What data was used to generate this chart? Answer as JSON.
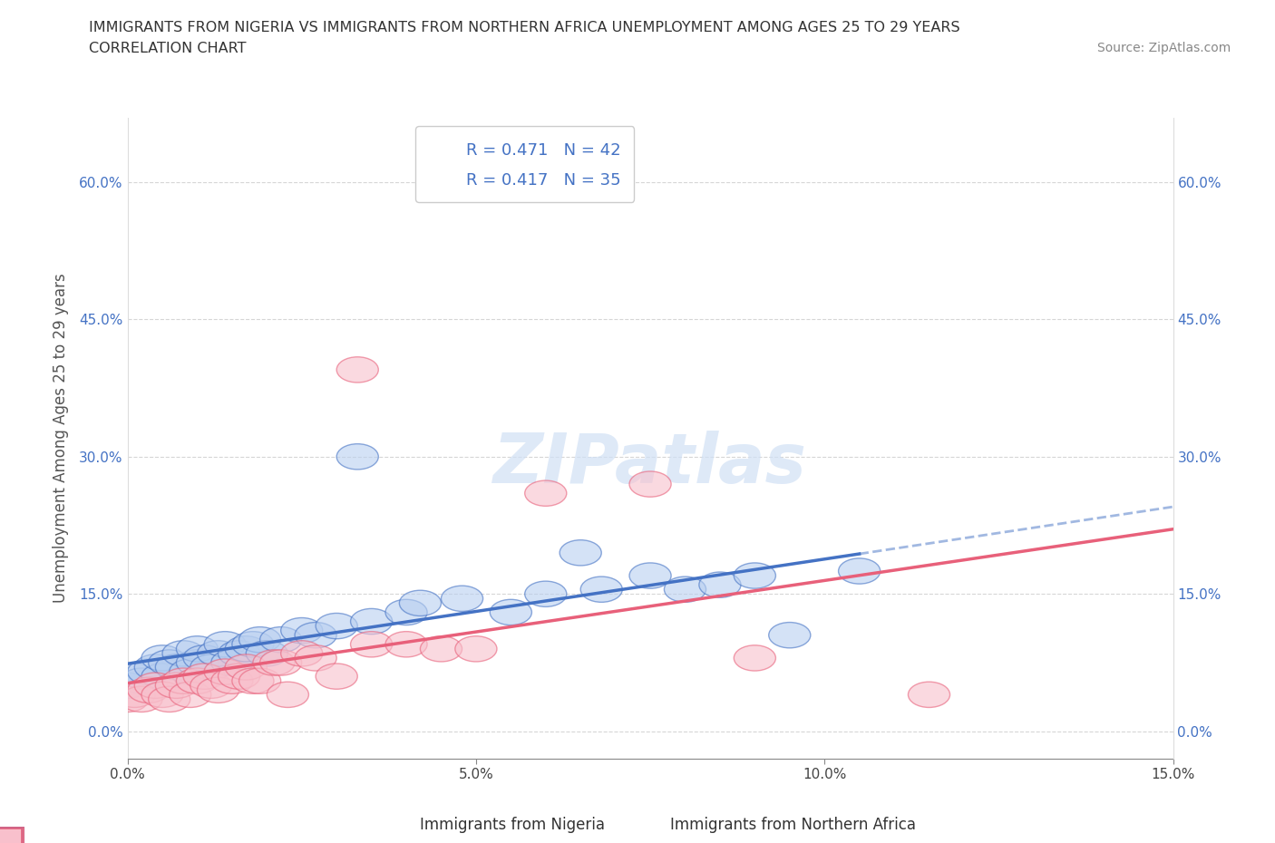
{
  "title_line1": "IMMIGRANTS FROM NIGERIA VS IMMIGRANTS FROM NORTHERN AFRICA UNEMPLOYMENT AMONG AGES 25 TO 29 YEARS",
  "title_line2": "CORRELATION CHART",
  "source_text": "Source: ZipAtlas.com",
  "ylabel": "Unemployment Among Ages 25 to 29 years",
  "xlim": [
    0.0,
    0.15
  ],
  "ylim": [
    -0.03,
    0.67
  ],
  "yticks": [
    0.0,
    0.15,
    0.3,
    0.45,
    0.6
  ],
  "ytick_labels": [
    "0.0%",
    "15.0%",
    "30.0%",
    "45.0%",
    "60.0%"
  ],
  "xticks": [
    0.0,
    0.05,
    0.1,
    0.15
  ],
  "xtick_labels": [
    "0.0%",
    "5.0%",
    "10.0%",
    "15.0%"
  ],
  "nigeria_color_face": "#b8cff0",
  "nigeria_color_edge": "#4472c4",
  "n_africa_color_face": "#f8c0cc",
  "n_africa_color_edge": "#e8607a",
  "nigeria_line_color": "#4472c4",
  "n_africa_line_color": "#e8607a",
  "watermark": "ZIPatlas",
  "legend_label_nigeria": "Immigrants from Nigeria",
  "legend_label_n_africa": "Immigrants from Northern Africa",
  "background_color": "#ffffff",
  "grid_color": "#cccccc",
  "nigeria_scatter_x": [
    0.0,
    0.001,
    0.002,
    0.003,
    0.004,
    0.005,
    0.005,
    0.006,
    0.007,
    0.008,
    0.009,
    0.01,
    0.01,
    0.011,
    0.012,
    0.013,
    0.014,
    0.015,
    0.016,
    0.017,
    0.018,
    0.019,
    0.02,
    0.022,
    0.025,
    0.027,
    0.03,
    0.033,
    0.035,
    0.04,
    0.042,
    0.048,
    0.055,
    0.06,
    0.065,
    0.068,
    0.075,
    0.08,
    0.085,
    0.09,
    0.095,
    0.105
  ],
  "nigeria_scatter_y": [
    0.05,
    0.06,
    0.055,
    0.065,
    0.07,
    0.06,
    0.08,
    0.075,
    0.07,
    0.085,
    0.065,
    0.075,
    0.09,
    0.08,
    0.07,
    0.085,
    0.095,
    0.075,
    0.085,
    0.09,
    0.095,
    0.1,
    0.085,
    0.1,
    0.11,
    0.105,
    0.115,
    0.3,
    0.12,
    0.13,
    0.14,
    0.145,
    0.13,
    0.15,
    0.195,
    0.155,
    0.17,
    0.155,
    0.16,
    0.17,
    0.105,
    0.175
  ],
  "n_africa_scatter_x": [
    0.0,
    0.001,
    0.002,
    0.003,
    0.004,
    0.005,
    0.006,
    0.007,
    0.008,
    0.009,
    0.01,
    0.011,
    0.012,
    0.013,
    0.014,
    0.015,
    0.016,
    0.017,
    0.018,
    0.019,
    0.021,
    0.022,
    0.023,
    0.025,
    0.027,
    0.03,
    0.033,
    0.035,
    0.04,
    0.045,
    0.05,
    0.06,
    0.075,
    0.09,
    0.115
  ],
  "n_africa_scatter_y": [
    0.035,
    0.04,
    0.035,
    0.045,
    0.05,
    0.04,
    0.035,
    0.05,
    0.055,
    0.04,
    0.055,
    0.06,
    0.05,
    0.045,
    0.065,
    0.055,
    0.06,
    0.07,
    0.055,
    0.055,
    0.075,
    0.075,
    0.04,
    0.085,
    0.08,
    0.06,
    0.395,
    0.095,
    0.095,
    0.09,
    0.09,
    0.26,
    0.27,
    0.08,
    0.04
  ]
}
